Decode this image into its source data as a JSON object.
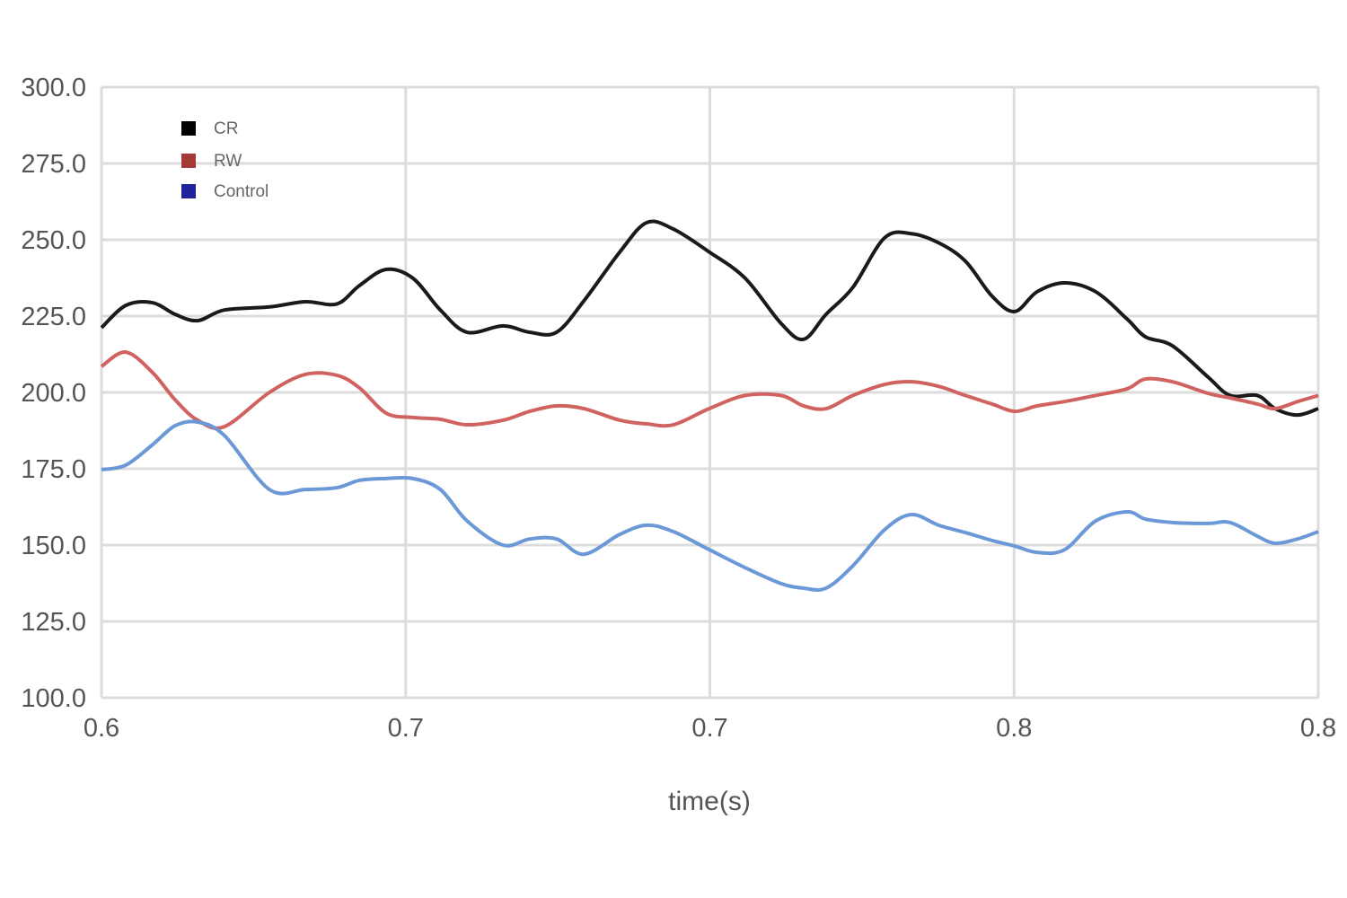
{
  "chart_data": {
    "type": "line",
    "title": "",
    "xlabel": "time(s)",
    "ylabel": "",
    "xlim": [
      0.6,
      0.8
    ],
    "ylim": [
      100,
      300
    ],
    "grid": true,
    "legend_position": "top-left",
    "x_ticks": [
      0.6,
      0.65,
      0.7,
      0.75,
      0.8
    ],
    "x_tick_labels": [
      "0.6",
      "0.7",
      "0.7",
      "0.8",
      "0.8"
    ],
    "y_ticks": [
      100,
      125,
      150,
      175,
      200,
      225,
      250,
      275,
      300
    ],
    "y_tick_labels": [
      "100.0",
      "125.0",
      "150.0",
      "175.0",
      "200.0",
      "225.0",
      "250.0",
      "275.0",
      "300.0"
    ],
    "x": [
      0.6,
      0.604,
      0.6084,
      0.6121,
      0.6158,
      0.6202,
      0.6276,
      0.6335,
      0.6387,
      0.6424,
      0.6468,
      0.6512,
      0.6557,
      0.6601,
      0.666,
      0.6704,
      0.6748,
      0.6793,
      0.6852,
      0.6896,
      0.694,
      0.6999,
      0.7058,
      0.7117,
      0.7154,
      0.7191,
      0.7235,
      0.7287,
      0.7331,
      0.7376,
      0.742,
      0.7464,
      0.7501,
      0.7538,
      0.7583,
      0.7634,
      0.7686,
      0.7716,
      0.776,
      0.7819,
      0.7855,
      0.79,
      0.7929,
      0.7966,
      0.8
    ],
    "series": [
      {
        "name": "CR",
        "legend_color": "#000000",
        "line_color": "#1a1a1a",
        "values": [
          221.2,
          228.5,
          229.4,
          225.6,
          223.5,
          227,
          228,
          229.7,
          229,
          235,
          240.3,
          237.4,
          227,
          219.7,
          221.8,
          219.7,
          219.7,
          230,
          246,
          255.6,
          253.5,
          246,
          237.4,
          222.6,
          217.4,
          225.6,
          234.4,
          250.6,
          252,
          249,
          243,
          231.5,
          226.5,
          233,
          235.9,
          233,
          224,
          218.2,
          215.3,
          205,
          199,
          199,
          194.7,
          192.6,
          194.7
        ]
      },
      {
        "name": "RW",
        "legend_color": "#a33a35",
        "line_color": "#d0625f",
        "values": [
          208.5,
          213.2,
          206.5,
          197.6,
          190.9,
          188.8,
          200,
          205.9,
          205.6,
          201.5,
          193.2,
          191.8,
          191.2,
          189.4,
          190.9,
          193.8,
          195.6,
          194.7,
          190.9,
          189.7,
          189.4,
          194.7,
          199,
          199,
          195.6,
          194.7,
          199,
          202.6,
          203.5,
          202,
          199,
          196.2,
          193.8,
          195.6,
          197,
          199,
          201.2,
          204.4,
          203.5,
          199.7,
          198.2,
          196.2,
          194.7,
          197,
          199
        ]
      },
      {
        "name": "Control",
        "legend_color": "#22229a",
        "line_color": "#6b98d6",
        "values": [
          174.7,
          176.2,
          182.9,
          189.1,
          190.3,
          185.9,
          168.2,
          168.2,
          168.8,
          171.2,
          171.8,
          171.8,
          168.2,
          157.9,
          150,
          152,
          152,
          147,
          153.5,
          156.5,
          154.4,
          148.5,
          142.6,
          137.4,
          135.9,
          135.9,
          143.2,
          155,
          160,
          156.5,
          154.1,
          151.5,
          149.7,
          147.6,
          148.5,
          157.9,
          160.9,
          158.5,
          157.4,
          157.1,
          157.4,
          152.9,
          150.6,
          152,
          154.4
        ]
      }
    ]
  }
}
